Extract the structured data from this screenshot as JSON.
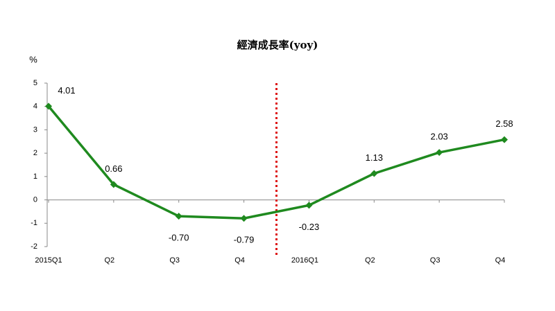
{
  "chart_data": {
    "type": "line",
    "title": "經濟成長率(yoy)",
    "y_label": "%",
    "categories": [
      "2015Q1",
      "Q2",
      "Q3",
      "Q4",
      "2016Q1",
      "Q2",
      "Q3",
      "Q4"
    ],
    "series": [
      {
        "name": "經濟成長率",
        "color": "#1f8a1f",
        "values": [
          4.01,
          0.66,
          -0.7,
          -0.79,
          -0.23,
          1.13,
          2.03,
          2.58
        ],
        "value_labels": [
          "4.01",
          "0.66",
          "-0.70",
          "-0.79",
          "-0.23",
          "1.13",
          "2.03",
          "2.58"
        ]
      }
    ],
    "ylim": [
      -2,
      5
    ],
    "yticks": [
      -2,
      -1,
      0,
      1,
      2,
      3,
      4,
      5
    ],
    "grid": false
  }
}
